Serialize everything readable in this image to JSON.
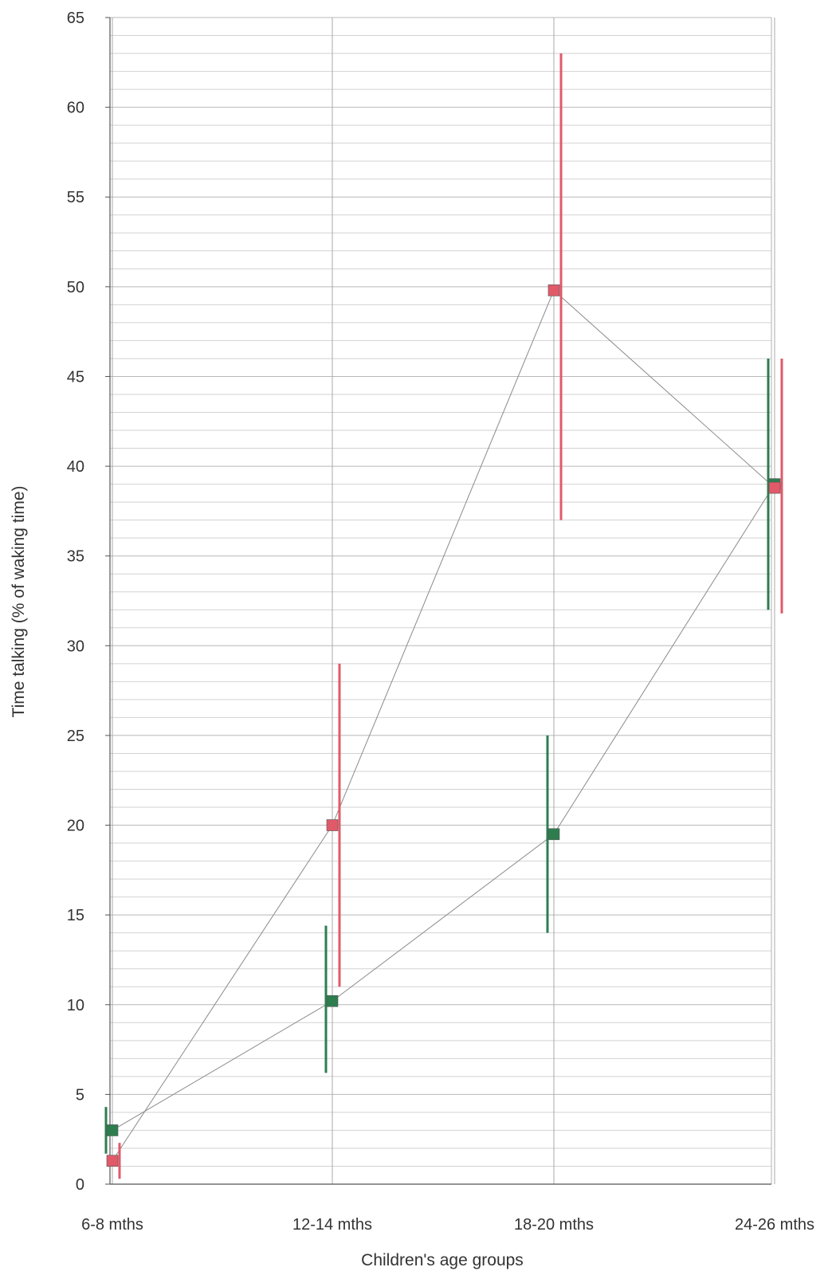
{
  "chart_data": {
    "type": "line",
    "title": "",
    "xlabel": "Children's age groups",
    "ylabel": "Time talking (% of waking time)",
    "categories": [
      "6-8 mths",
      "12-14 mths",
      "18-20 mths",
      "24-26 mths"
    ],
    "ylim": [
      0,
      65
    ],
    "yticks": [
      0,
      5,
      10,
      15,
      20,
      25,
      30,
      35,
      40,
      45,
      50,
      55,
      60,
      65
    ],
    "grid": true,
    "legend": "none",
    "series": [
      {
        "color": "#2e7d4f",
        "values": [
          3,
          10.2,
          19.5,
          39
        ],
        "error_low": [
          1.7,
          6.2,
          14,
          32
        ],
        "error_high": [
          4.3,
          14.4,
          25,
          46
        ]
      },
      {
        "color": "#e05a6a",
        "values": [
          1.3,
          20,
          49.8,
          38.8
        ],
        "error_low": [
          0.3,
          11,
          37,
          31.8
        ],
        "error_high": [
          2.3,
          29,
          63,
          46
        ]
      }
    ]
  }
}
